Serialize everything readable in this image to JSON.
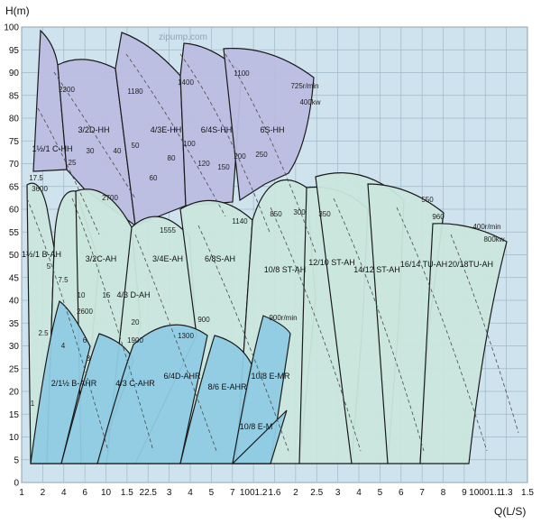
{
  "chart_data": {
    "type": "area",
    "title": "",
    "xlabel": "Q(L/S)",
    "ylabel": "H(m)",
    "ylim": [
      0,
      100
    ],
    "y_ticks": [
      "0",
      "5",
      "10",
      "15",
      "20",
      "25",
      "30",
      "35",
      "40",
      "45",
      "50",
      "55",
      "60",
      "65",
      "70",
      "75",
      "80",
      "85",
      "90",
      "95",
      "100"
    ],
    "x_scale": "log",
    "x_ticks": [
      "1",
      "2",
      "4",
      "6",
      "10",
      "1.5",
      "22.5",
      "3",
      "4",
      "5",
      "7",
      "1001.2",
      "1.6",
      "2",
      "2.5",
      "3",
      "4",
      "5",
      "6",
      "7",
      "8",
      "9",
      "10001.1",
      "1.3",
      "1.5"
    ],
    "grid": true,
    "legend": "none",
    "watermark": "zipump.com",
    "colors": {
      "background": "#cfe3ee",
      "grid": "#9fb8c6",
      "HH": "#bcbde0",
      "AH": "#c9e6dc",
      "AHR": "#8fcbe3",
      "outline": "#1a1a1a",
      "dashed": "#4a4a4a"
    },
    "series": [
      {
        "name": "1½/1 C-HH",
        "group": "HH"
      },
      {
        "name": "3/2D-HH",
        "group": "HH"
      },
      {
        "name": "4/3E-HH",
        "group": "HH"
      },
      {
        "name": "6/4S-HH",
        "group": "HH"
      },
      {
        "name": "6S-HH",
        "group": "HH"
      },
      {
        "name": "1½/1 B-AH",
        "group": "AH"
      },
      {
        "name": "3/2C-AH",
        "group": "AH"
      },
      {
        "name": "4/3 D-AH",
        "group": "AH"
      },
      {
        "name": "3/4E-AH",
        "group": "AH"
      },
      {
        "name": "6/8S-AH",
        "group": "AH"
      },
      {
        "name": "10/8 ST-AH",
        "group": "AH"
      },
      {
        "name": "12/10 ST-AH",
        "group": "AH"
      },
      {
        "name": "14/12 ST-AH",
        "group": "AH"
      },
      {
        "name": "16/14 TU-AH",
        "group": "AH"
      },
      {
        "name": "20/18TU-AH",
        "group": "AH"
      },
      {
        "name": "2/1½ B-AHR",
        "group": "AHR"
      },
      {
        "name": "4/3 C-AHR",
        "group": "AHR"
      },
      {
        "name": "6/4D-AHR",
        "group": "AHR"
      },
      {
        "name": "8/6 E-AHR",
        "group": "AHR"
      },
      {
        "name": "10/8 E-MR",
        "group": "AHR"
      },
      {
        "name": "10/8 E-M",
        "group": "AHR"
      }
    ],
    "annotations": [
      "2200",
      "1180",
      "1400",
      "1100",
      "725r/min",
      "400kw",
      "3600",
      "2700",
      "1555",
      "1140",
      "850",
      "900r/min",
      "800kw",
      "400r/min",
      "550",
      "960",
      "1300",
      "1900",
      "2600",
      "900"
    ],
    "curve_labels": [
      "25",
      "17.5",
      "30",
      "40",
      "50",
      "60",
      "80",
      "100",
      "120",
      "150",
      "200",
      "250",
      "300",
      "350",
      "5",
      "7.5",
      "10",
      "15",
      "20",
      "2.5",
      "6",
      "8",
      "4",
      "1"
    ]
  }
}
